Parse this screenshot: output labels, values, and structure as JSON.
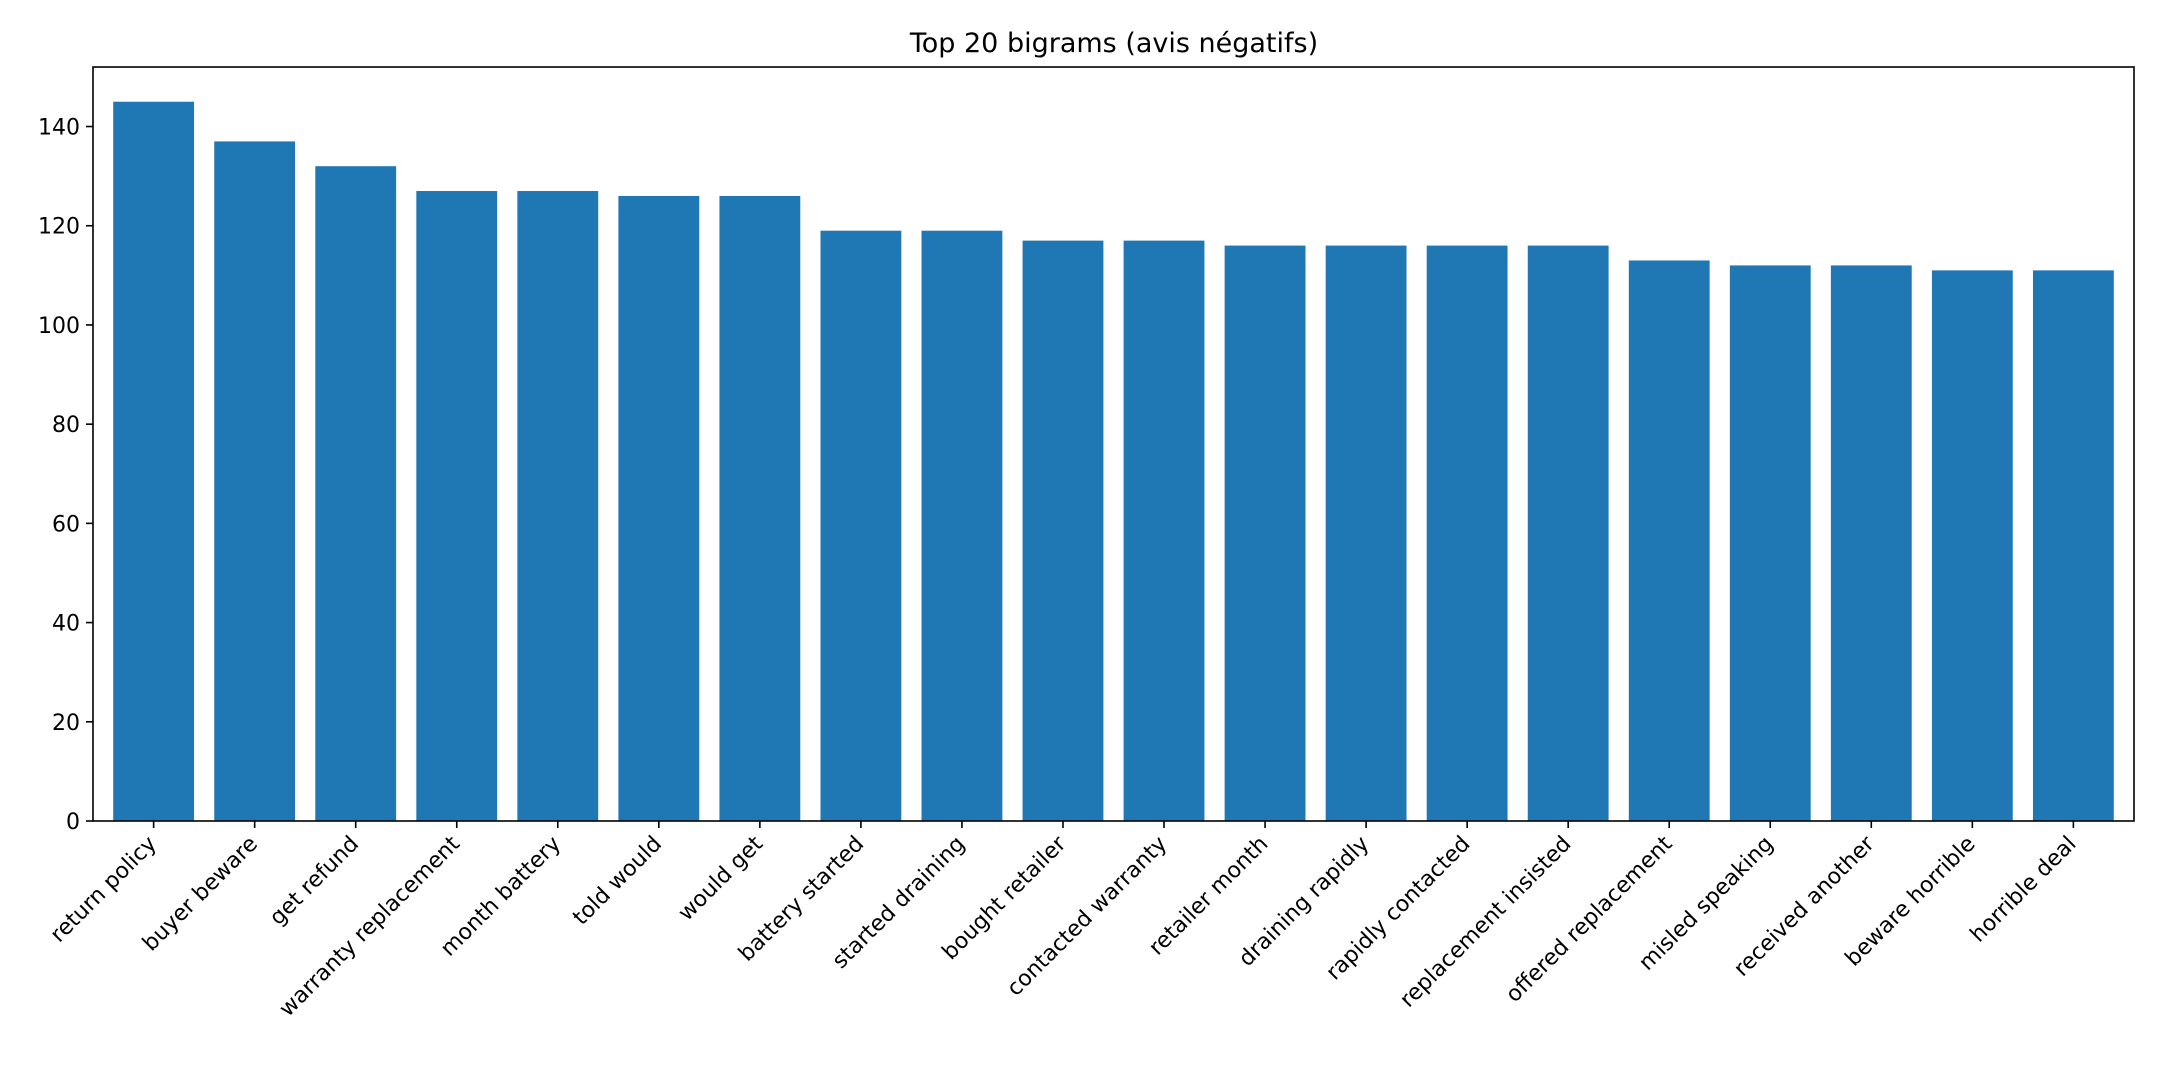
{
  "chart_data": {
    "type": "bar",
    "title": "Top 20 bigrams (avis négatifs)",
    "xlabel": "",
    "ylabel": "",
    "ylim": [
      0,
      152
    ],
    "yticks": [
      0,
      20,
      40,
      60,
      80,
      100,
      120,
      140
    ],
    "grid": false,
    "bar_color": "#1f77b4",
    "categories": [
      "return policy",
      "buyer beware",
      "get refund",
      "warranty replacement",
      "month battery",
      "told would",
      "would get",
      "battery started",
      "started draining",
      "bought retailer",
      "contacted warranty",
      "retailer month",
      "draining rapidly",
      "rapidly contacted",
      "replacement insisted",
      "offered replacement",
      "misled speaking",
      "received another",
      "beware horrible",
      "horrible deal"
    ],
    "values": [
      145,
      137,
      132,
      127,
      127,
      126,
      126,
      119,
      119,
      117,
      117,
      116,
      116,
      116,
      116,
      113,
      112,
      112,
      111,
      111
    ]
  }
}
